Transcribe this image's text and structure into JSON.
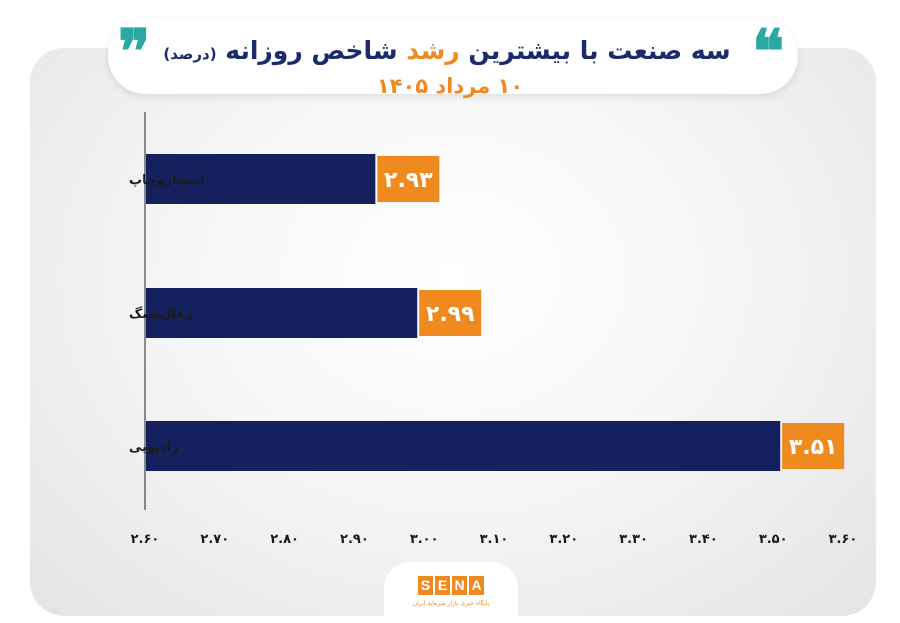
{
  "header": {
    "title_part1": "سه صنعت با بیشترین",
    "title_highlight": "رشد",
    "title_part2": "شاخص روزانه",
    "title_unit": "(درصد)",
    "subtitle": "۱۰ مرداد ۱۴۰۵",
    "quote_open": "❞",
    "quote_close": "❝"
  },
  "chart_data": {
    "type": "bar",
    "orientation": "horizontal",
    "categories": [
      "انتشاروچاپ",
      "زغال‌سنگ",
      "رادیویی"
    ],
    "values": [
      2.93,
      2.99,
      3.51
    ],
    "value_labels": [
      "۲.۹۳",
      "۲.۹۹",
      "۳.۵۱"
    ],
    "xlim": [
      2.6,
      3.6
    ],
    "ticks": [
      2.6,
      2.7,
      2.8,
      2.9,
      3.0,
      3.1,
      3.2,
      3.3,
      3.4,
      3.5,
      3.6
    ],
    "tick_labels": [
      "۲.۶۰",
      "۲.۷۰",
      "۲.۸۰",
      "۲.۹۰",
      "۳.۰۰",
      "۳.۱۰",
      "۳.۲۰",
      "۳.۳۰",
      "۳.۴۰",
      "۳.۵۰",
      "۳.۶۰"
    ],
    "grid": false,
    "bar_color": "#14215e",
    "label_bg_color": "#ef8a1e",
    "axis_color": "#444444"
  },
  "logo": {
    "letters": [
      "S",
      "E",
      "N",
      "A"
    ],
    "tagline": "پایگاه خبری بازار سرمایه ایران",
    "color": "#ef8a1e"
  }
}
